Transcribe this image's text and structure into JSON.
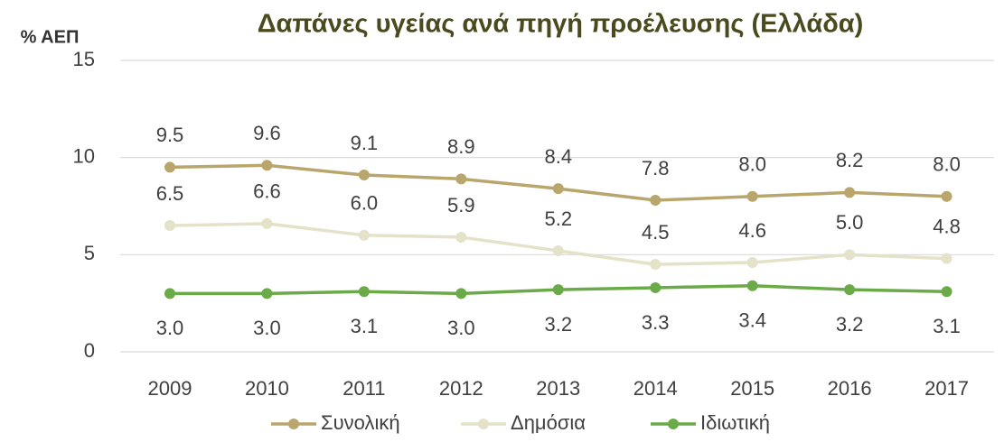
{
  "chart_data": {
    "type": "line",
    "title": "Δαπάνες υγείας ανά πηγή προέλευσης (Ελλάδα)",
    "y_label": "% ΑΕΠ",
    "categories": [
      "2009",
      "2010",
      "2011",
      "2012",
      "2013",
      "2014",
      "2015",
      "2016",
      "2017"
    ],
    "series": [
      {
        "name": "Συνολική",
        "color": "#b8a66c",
        "values": [
          9.5,
          9.6,
          9.1,
          8.9,
          8.4,
          7.8,
          8.0,
          8.2,
          8.0
        ],
        "value_labels": [
          "9.5",
          "9.6",
          "9.1",
          "8.9",
          "8.4",
          "7.8",
          "8.0",
          "8.2",
          "8.0"
        ]
      },
      {
        "name": "Δημόσια",
        "color": "#e4e2c8",
        "values": [
          6.5,
          6.6,
          6.0,
          5.9,
          5.2,
          4.5,
          4.6,
          5.0,
          4.8
        ],
        "value_labels": [
          "6.5",
          "6.6",
          "6.0",
          "5.9",
          "5.2",
          "4.5",
          "4.6",
          "5.0",
          "4.8"
        ]
      },
      {
        "name": "Ιδιωτική",
        "color": "#6aaa48",
        "values": [
          3.0,
          3.0,
          3.1,
          3.0,
          3.2,
          3.3,
          3.4,
          3.2,
          3.1
        ],
        "value_labels": [
          "3.0",
          "3.0",
          "3.1",
          "3.0",
          "3.2",
          "3.3",
          "3.4",
          "3.2",
          "3.1"
        ]
      }
    ],
    "ylim": [
      0,
      15
    ],
    "yticks": [
      0,
      5,
      10,
      15
    ],
    "grid": true,
    "legend": "bottom"
  }
}
